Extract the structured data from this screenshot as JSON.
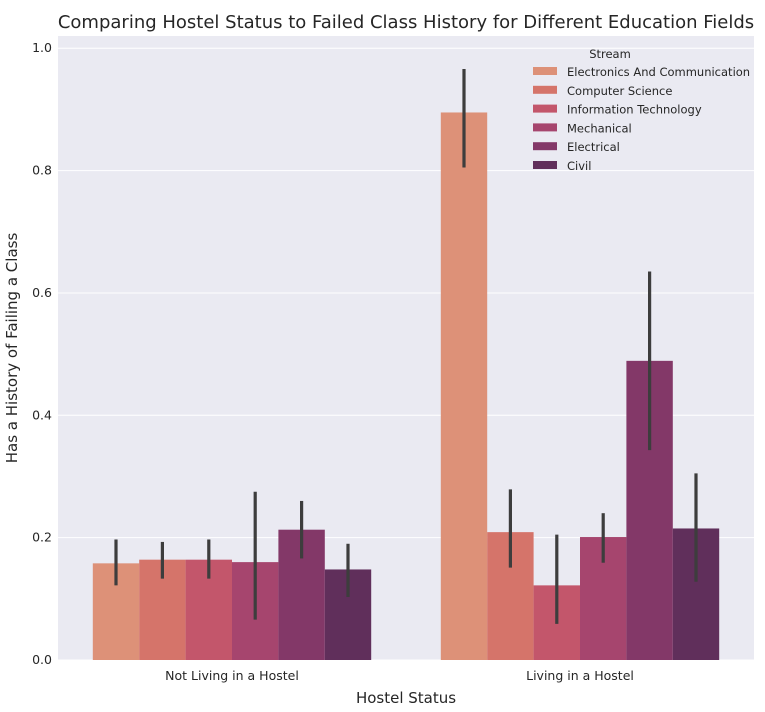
{
  "chart_data": {
    "type": "bar",
    "title": "Comparing Hostel Status to Failed Class History for Different Education Fields",
    "xlabel": "Hostel Status",
    "ylabel": "Has a History of Failing a Class",
    "categories": [
      "Not Living in a Hostel",
      "Living in a Hostel"
    ],
    "ylim": [
      0,
      1.02
    ],
    "yticks": [
      "0.0",
      "0.2",
      "0.4",
      "0.6",
      "0.8",
      "1.0"
    ],
    "grid": true,
    "legend": {
      "title": "Stream",
      "placement": "top-right"
    },
    "series": [
      {
        "name": "Electronics And Communication",
        "color": "#dd9178",
        "values": [
          0.158,
          0.895
        ],
        "ci": [
          [
            0.122,
            0.197
          ],
          [
            0.805,
            0.966
          ]
        ]
      },
      {
        "name": "Computer Science",
        "color": "#d5746a",
        "values": [
          0.164,
          0.209
        ],
        "ci": [
          [
            0.133,
            0.193
          ],
          [
            0.151,
            0.279
          ]
        ]
      },
      {
        "name": "Information Technology",
        "color": "#c3566b",
        "values": [
          0.164,
          0.122
        ],
        "ci": [
          [
            0.133,
            0.197
          ],
          [
            0.059,
            0.205
          ]
        ]
      },
      {
        "name": "Mechanical",
        "color": "#a6456e",
        "values": [
          0.16,
          0.201
        ],
        "ci": [
          [
            0.066,
            0.275
          ],
          [
            0.159,
            0.24
          ]
        ]
      },
      {
        "name": "Electrical",
        "color": "#833868",
        "values": [
          0.213,
          0.489
        ],
        "ci": [
          [
            0.166,
            0.26
          ],
          [
            0.343,
            0.635
          ]
        ]
      },
      {
        "name": "Civil",
        "color": "#602f5b",
        "values": [
          0.148,
          0.215
        ],
        "ci": [
          [
            0.103,
            0.19
          ],
          [
            0.128,
            0.305
          ]
        ]
      }
    ]
  }
}
